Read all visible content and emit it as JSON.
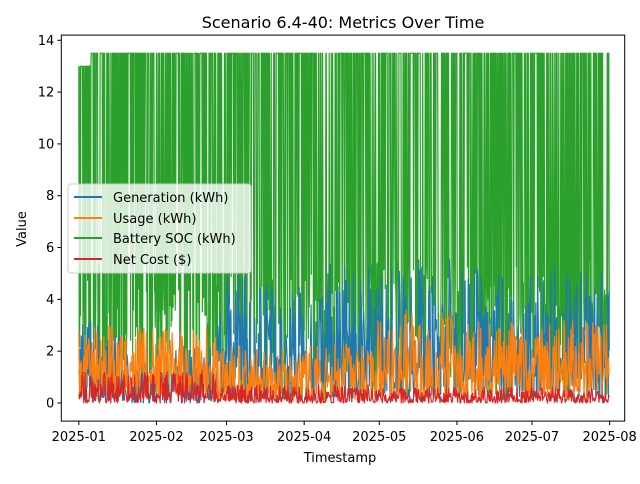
{
  "chart_data": {
    "type": "line",
    "title": "Scenario 6.4-40: Metrics Over Time",
    "xlabel": "Timestamp",
    "ylabel": "Value",
    "x_ticks": [
      "2025-01",
      "2025-02",
      "2025-03",
      "2025-04",
      "2025-05",
      "2025-06",
      "2025-07",
      "2025-08"
    ],
    "y_ticks": [
      "0",
      "2",
      "4",
      "6",
      "8",
      "10",
      "12",
      "14"
    ],
    "x_range": [
      "2024-12-25",
      "2025-08-07"
    ],
    "ylim": [
      -0.7,
      14.2
    ],
    "grid": false,
    "legend_position": "center-left",
    "series": [
      {
        "name": "Generation (kWh)",
        "color": "#1f77b4",
        "segments": [
          {
            "start": "2025-01-01",
            "end": "2025-01-20",
            "base": 0.0,
            "peak": 3.3
          },
          {
            "start": "2025-01-20",
            "end": "2025-02-25",
            "base": 0.0,
            "peak": 2.2
          },
          {
            "start": "2025-02-25",
            "end": "2025-03-10",
            "base": 0.2,
            "peak": 5.3
          },
          {
            "start": "2025-03-10",
            "end": "2025-04-10",
            "base": 0.1,
            "peak": 4.6
          },
          {
            "start": "2025-04-10",
            "end": "2025-04-30",
            "base": 0.2,
            "peak": 5.4
          },
          {
            "start": "2025-04-30",
            "end": "2025-06-01",
            "base": 0.2,
            "peak": 5.6
          },
          {
            "start": "2025-06-01",
            "end": "2025-06-25",
            "base": 0.2,
            "peak": 5.2
          },
          {
            "start": "2025-06-25",
            "end": "2025-08-01",
            "base": 0.2,
            "peak": 5.3
          }
        ]
      },
      {
        "name": "Usage (kWh)",
        "color": "#ff7f0e",
        "segments": [
          {
            "start": "2025-01-01",
            "end": "2025-02-25",
            "base": 0.3,
            "peak": 3.0
          },
          {
            "start": "2025-02-25",
            "end": "2025-04-30",
            "base": 0.1,
            "peak": 2.3
          },
          {
            "start": "2025-04-30",
            "end": "2025-06-01",
            "base": 0.2,
            "peak": 3.6
          },
          {
            "start": "2025-06-01",
            "end": "2025-08-01",
            "base": 0.2,
            "peak": 3.2
          }
        ]
      },
      {
        "name": "Battery SOC (kWh)",
        "color": "#2ca02c",
        "segments": [
          {
            "start": "2025-01-01",
            "end": "2025-01-06",
            "base": 0.0,
            "peak": 13.0
          },
          {
            "start": "2025-01-06",
            "end": "2025-02-28",
            "base": 0.1,
            "peak": 13.5
          },
          {
            "start": "2025-02-28",
            "end": "2025-04-30",
            "base": 0.1,
            "peak": 13.5
          },
          {
            "start": "2025-04-30",
            "end": "2025-06-01",
            "base": 0.1,
            "peak": 13.5
          },
          {
            "start": "2025-06-01",
            "end": "2025-08-01",
            "base": 0.1,
            "peak": 13.5
          }
        ]
      },
      {
        "name": "Net Cost ($)",
        "color": "#d62728",
        "segments": [
          {
            "start": "2025-01-01",
            "end": "2025-02-25",
            "base": 0.0,
            "peak": 1.2
          },
          {
            "start": "2025-02-25",
            "end": "2025-04-30",
            "base": 0.0,
            "peak": 0.7
          },
          {
            "start": "2025-04-30",
            "end": "2025-08-01",
            "base": 0.0,
            "peak": 0.6
          }
        ]
      }
    ]
  }
}
